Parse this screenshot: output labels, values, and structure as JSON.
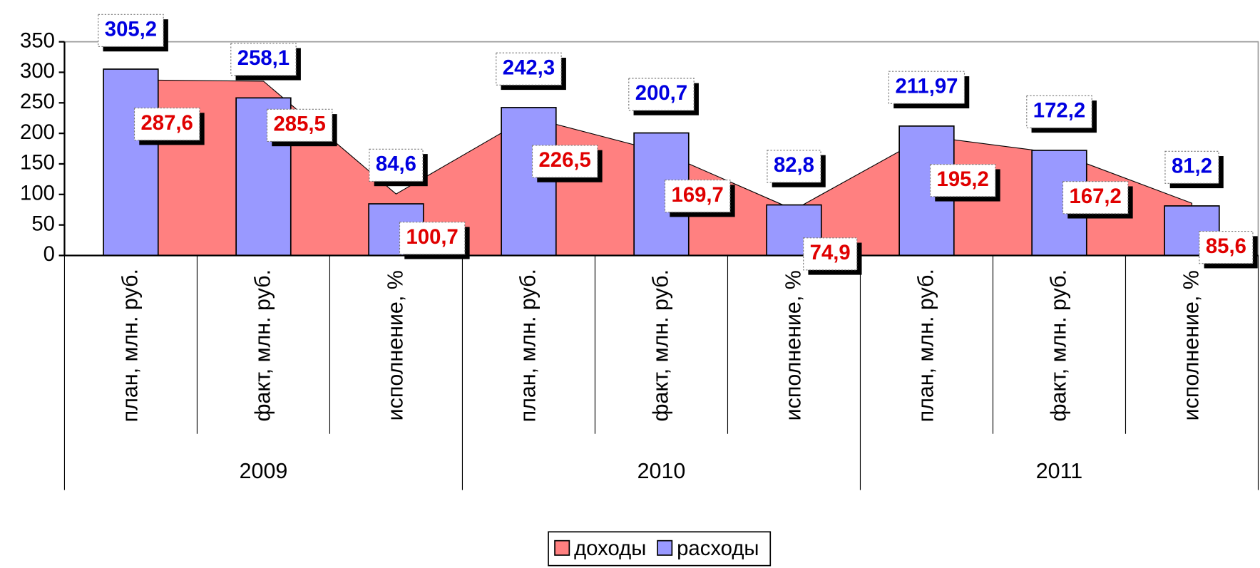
{
  "chart_data": {
    "type": "bar",
    "categories": [
      "план, млн. руб.",
      "факт, млн. руб.",
      "исполнение, %",
      "план, млн. руб.",
      "факт, млн. руб.",
      "исполнение, %",
      "план, млн. руб.",
      "факт, млн. руб.",
      "исполнение, %"
    ],
    "groups": [
      "2009",
      "2010",
      "2011"
    ],
    "series": [
      {
        "name": "доходы",
        "type": "area",
        "color": "#ff8080",
        "label_color": "#e00000",
        "values": [
          287.6,
          285.5,
          100.7,
          226.5,
          169.7,
          74.9,
          195.2,
          167.2,
          85.6
        ],
        "value_labels": [
          "287,6",
          "285,5",
          "100,7",
          "226,5",
          "169,7",
          "74,9",
          "195,2",
          "167,2",
          "85,6"
        ]
      },
      {
        "name": "расходы",
        "type": "bar",
        "color": "#9999ff",
        "label_color": "#0000e0",
        "values": [
          305.2,
          258.1,
          84.6,
          242.3,
          200.7,
          82.8,
          211.97,
          172.2,
          81.2
        ],
        "value_labels": [
          "305,2",
          "258,1",
          "84,6",
          "242,3",
          "200,7",
          "82,8",
          "211,97",
          "172,2",
          "81,2"
        ]
      }
    ],
    "ylim": [
      0,
      350
    ],
    "yticks": [
      0,
      50,
      100,
      150,
      200,
      250,
      300,
      350
    ],
    "grid": false,
    "legend": "bottom"
  }
}
